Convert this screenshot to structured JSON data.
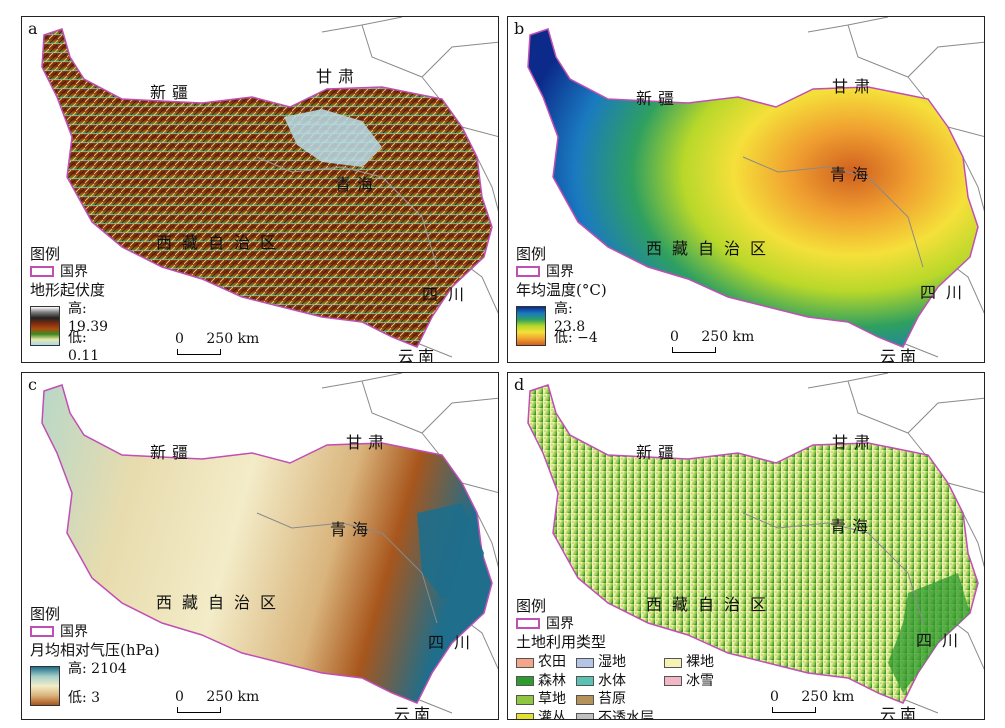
{
  "colors": {
    "national_border": "#c04fb5",
    "province_border": "#8a8a8a",
    "background": "#ffffff"
  },
  "common": {
    "legend_title": "图例",
    "border_label": "国界",
    "regions": {
      "xinjiang": "新疆",
      "gansu": "甘肃",
      "qinghai": "青海",
      "tibet": "西藏自治区",
      "sichuan": "四川",
      "yunnan": "云南"
    },
    "scale": {
      "zero": "0",
      "label": "250 km"
    }
  },
  "panels": [
    {
      "id": "a",
      "label": "a",
      "variable": "地形起伏度",
      "high": "高: 19.39",
      "low": "低: 0.11",
      "ramp": [
        "#ffffff",
        "#7a7a7a",
        "#222222",
        "#7a2a10",
        "#b04a10",
        "#3a8a1e",
        "#e8e8a8",
        "#a8d8f0"
      ]
    },
    {
      "id": "b",
      "label": "b",
      "variable": "年均温度(°C)",
      "high": "高: 23.8",
      "low": "低: −4",
      "ramp": [
        "#0b2a8a",
        "#1a7ac0",
        "#2fa060",
        "#b8d82a",
        "#f5e03a",
        "#f0a030",
        "#d06020"
      ]
    },
    {
      "id": "c",
      "label": "c",
      "variable": "月均相对气压(hPa)",
      "high": "高: 2104",
      "low": "低: 3",
      "ramp": [
        "#1e6e8c",
        "#a8d0c8",
        "#f3ecc8",
        "#d9b47c",
        "#a8561c"
      ]
    },
    {
      "id": "d",
      "label": "d",
      "variable": "土地利用类型",
      "classes": [
        {
          "name": "农田",
          "color": "#f4a58a"
        },
        {
          "name": "湿地",
          "color": "#b6c4e8"
        },
        {
          "name": "裸地",
          "color": "#f6f3b4"
        },
        {
          "name": "森林",
          "color": "#2f9a2f"
        },
        {
          "name": "水体",
          "color": "#5cc0b2"
        },
        {
          "name": "冰雪",
          "color": "#f2b7c6"
        },
        {
          "name": "草地",
          "color": "#8ec63f"
        },
        {
          "name": "苔原",
          "color": "#b5925a"
        },
        {
          "name": "灌丛",
          "color": "#e4e030"
        },
        {
          "name": "不透水层",
          "color": "#c0c0c0"
        }
      ]
    }
  ]
}
